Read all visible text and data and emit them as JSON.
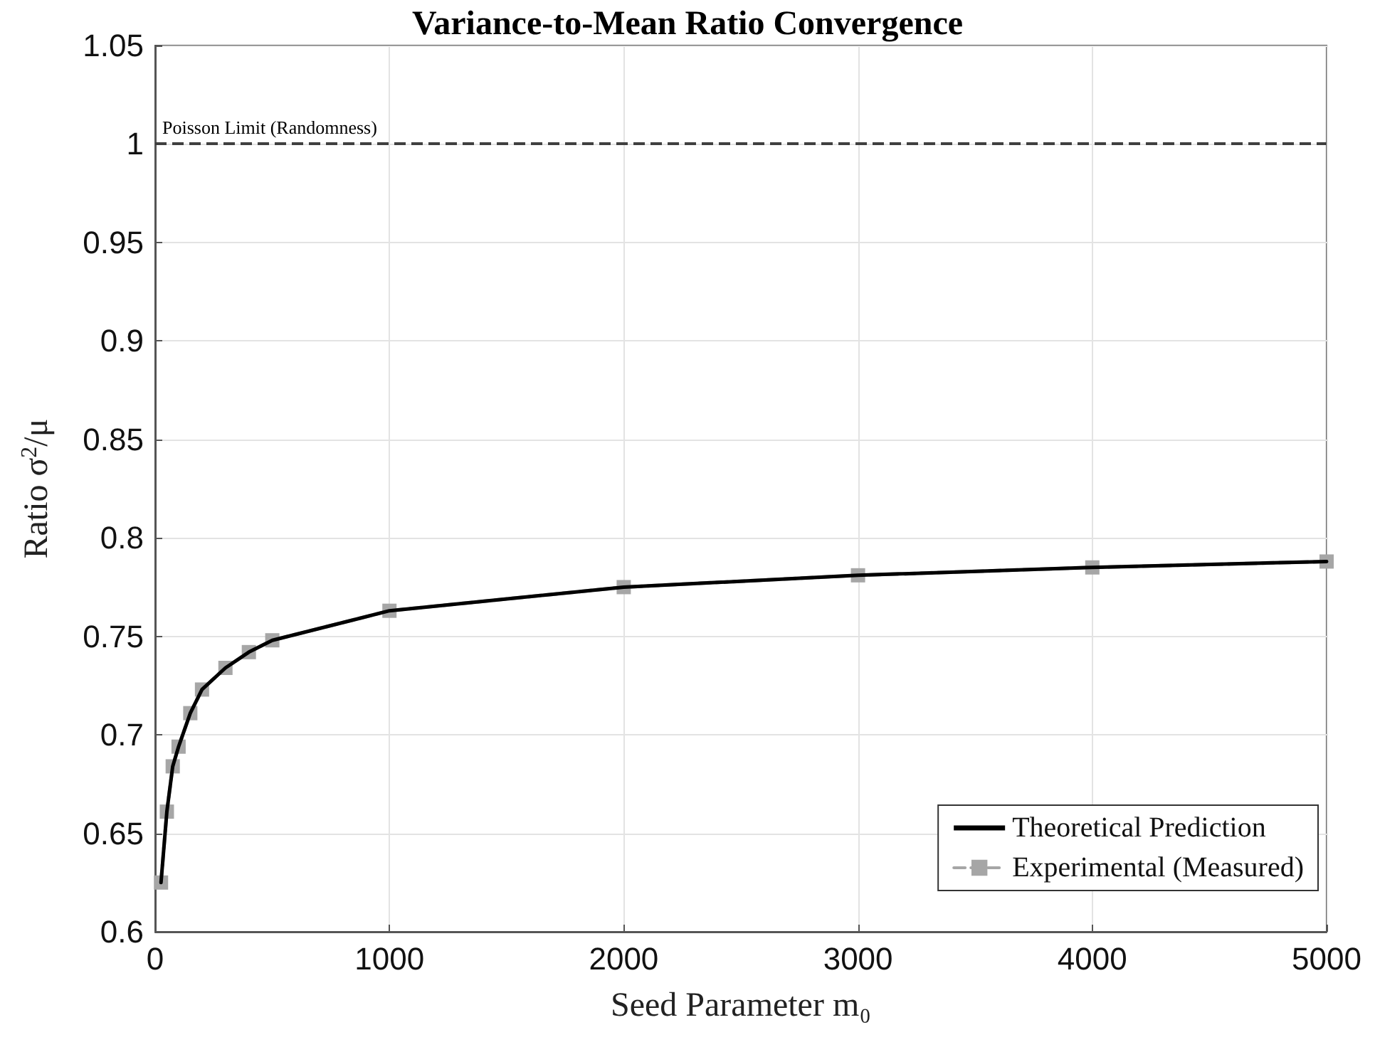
{
  "chart_data": {
    "type": "line",
    "title": "Variance-to-Mean Ratio Convergence",
    "xlabel": "Seed Parameter m₀",
    "ylabel": "Ratio σ$^{2}$/μ",
    "x": [
      25,
      50,
      75,
      100,
      150,
      200,
      300,
      400,
      500,
      1000,
      2000,
      3000,
      4000,
      5000
    ],
    "series": [
      {
        "name": "Theoretical Prediction",
        "color": "#000000",
        "marker": "none",
        "line_style": "solid",
        "values": [
          0.625,
          0.661,
          0.684,
          0.694,
          0.711,
          0.723,
          0.734,
          0.742,
          0.748,
          0.763,
          0.775,
          0.781,
          0.785,
          0.788
        ]
      },
      {
        "name": "Experimental (Measured)",
        "color": "#a6a6a6",
        "marker": "square",
        "line_style": "dashed",
        "values": [
          0.625,
          0.661,
          0.684,
          0.694,
          0.711,
          0.723,
          0.734,
          0.742,
          0.748,
          0.763,
          0.775,
          0.781,
          0.785,
          0.788
        ]
      }
    ],
    "xlim": [
      0,
      5000
    ],
    "xticks": [
      0,
      1000,
      2000,
      3000,
      4000,
      5000
    ],
    "ylim": [
      0.6,
      1.05
    ],
    "yticks": [
      0.6,
      0.65,
      0.7,
      0.75,
      0.8,
      0.85,
      0.9,
      0.95,
      1,
      1.05
    ],
    "ref_lines": [
      {
        "axis": "y",
        "value": 1,
        "label": "Poisson Limit (Randomness)",
        "color": "#404040",
        "line_style": "dashed"
      }
    ],
    "grid": true,
    "legend": "bottom right"
  }
}
